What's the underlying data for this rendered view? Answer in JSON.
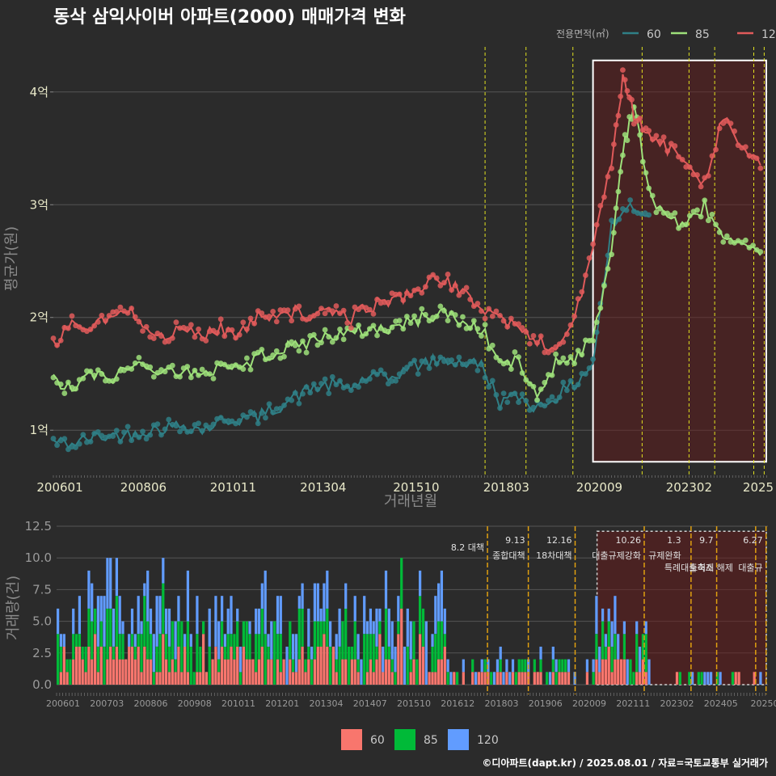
{
  "title": "동삭 삼익사이버 아파트(2000) 매매가격 변화",
  "caption": "©디아파트(dapt.kr) / 2025.08.01 / 자료=국토교통부 실거래가",
  "chart_data": [
    {
      "type": "line",
      "name": "price",
      "ylabel": "평균가(원)",
      "xlabel": "거래년월",
      "ylim": [
        0.6,
        4.4
      ],
      "yticks": [
        1,
        2,
        3,
        4
      ],
      "ytick_labels": [
        "1억",
        "2억",
        "3억",
        "4억"
      ],
      "xticks": [
        2006.0,
        2008.42,
        2010.83,
        2013.25,
        2015.75,
        2018.17,
        2020.67,
        2023.08,
        2025.0
      ],
      "xtick_labels": [
        "200601",
        "200806",
        "201011",
        "201304",
        "201510",
        "201803",
        "202009",
        "202302",
        "2025"
      ],
      "xlim": [
        2006.0,
        2025.2
      ],
      "legend_title": "전용면적(㎡)",
      "legend_position": "top-right",
      "series": [
        {
          "name": "60",
          "color": "#2f7f86",
          "x": [
            2006.0,
            2006.5,
            2007.0,
            2007.5,
            2008.0,
            2008.5,
            2009.0,
            2009.5,
            2010.0,
            2010.5,
            2011.0,
            2011.5,
            2012.0,
            2012.5,
            2013.0,
            2013.5,
            2014.0,
            2014.5,
            2015.0,
            2015.5,
            2016.0,
            2016.5,
            2017.0,
            2017.5,
            2018.0,
            2018.5,
            2019.0,
            2019.5,
            2020.0,
            2020.5,
            2021.0,
            2021.5,
            2022.0
          ],
          "y": [
            0.9,
            0.88,
            0.93,
            0.95,
            0.96,
            1.0,
            1.02,
            1.05,
            1.0,
            1.08,
            1.1,
            1.12,
            1.2,
            1.3,
            1.38,
            1.4,
            1.38,
            1.48,
            1.45,
            1.55,
            1.6,
            1.62,
            1.6,
            1.58,
            1.25,
            1.3,
            1.2,
            1.3,
            1.4,
            1.6,
            2.8,
            3.0,
            2.9
          ]
        },
        {
          "name": "85",
          "color": "#9ee07a",
          "x": [
            2006.0,
            2006.5,
            2007.0,
            2007.5,
            2008.0,
            2008.5,
            2009.0,
            2009.5,
            2010.0,
            2010.5,
            2011.0,
            2011.5,
            2012.0,
            2012.5,
            2013.0,
            2013.5,
            2014.0,
            2014.5,
            2015.0,
            2015.5,
            2016.0,
            2016.5,
            2017.0,
            2017.5,
            2018.0,
            2018.5,
            2019.0,
            2019.5,
            2020.0,
            2020.5,
            2021.0,
            2021.3,
            2021.6,
            2022.0,
            2022.5,
            2023.0,
            2023.5,
            2024.0,
            2024.5,
            2025.0
          ],
          "y": [
            1.45,
            1.35,
            1.5,
            1.45,
            1.55,
            1.6,
            1.5,
            1.55,
            1.45,
            1.6,
            1.55,
            1.65,
            1.7,
            1.75,
            1.8,
            1.85,
            1.85,
            1.9,
            1.9,
            1.95,
            2.0,
            2.05,
            1.95,
            1.9,
            1.6,
            1.6,
            1.3,
            1.6,
            1.65,
            1.8,
            2.6,
            3.5,
            3.9,
            3.1,
            2.9,
            2.8,
            3.0,
            2.7,
            2.6,
            2.55
          ]
        },
        {
          "name": "120",
          "color": "#e05a5a",
          "x": [
            2006.0,
            2006.5,
            2007.0,
            2007.5,
            2008.0,
            2008.5,
            2009.0,
            2009.5,
            2010.0,
            2010.5,
            2011.0,
            2011.5,
            2012.0,
            2012.5,
            2013.0,
            2013.5,
            2014.0,
            2014.5,
            2015.0,
            2015.5,
            2016.0,
            2016.5,
            2017.0,
            2017.5,
            2018.0,
            2018.5,
            2019.0,
            2019.5,
            2020.0,
            2020.5,
            2021.0,
            2021.3,
            2021.6,
            2022.0,
            2022.5,
            2023.0,
            2023.5,
            2024.0,
            2024.5,
            2025.0
          ],
          "y": [
            1.75,
            1.95,
            1.9,
            2.0,
            2.05,
            1.95,
            1.8,
            1.9,
            1.85,
            1.9,
            1.85,
            2.0,
            2.05,
            2.05,
            2.0,
            2.05,
            2.0,
            2.1,
            2.15,
            2.2,
            2.3,
            2.35,
            2.2,
            2.1,
            2.0,
            1.9,
            1.8,
            1.7,
            2.0,
            2.6,
            3.4,
            4.1,
            3.8,
            3.6,
            3.5,
            3.4,
            3.2,
            3.8,
            3.5,
            3.35
          ]
        }
      ],
      "policy_lines": [
        2017.6,
        2018.7,
        2019.96,
        2021.82,
        2023.08,
        2023.77,
        2024.82,
        2025.1
      ],
      "highlight_range": [
        2020.5,
        2025.2
      ]
    },
    {
      "type": "bar",
      "name": "volume",
      "ylabel": "거래량(건)",
      "ylim": [
        0,
        12.5
      ],
      "yticks": [
        0.0,
        2.5,
        5.0,
        7.5,
        10.0,
        12.5
      ],
      "ytick_labels": [
        "0.0",
        "2.5",
        "5.0",
        "7.5",
        "10.0",
        "12.5"
      ],
      "xtick_labels": [
        "200601",
        "200703",
        "200806",
        "200908",
        "201011",
        "201201",
        "201304",
        "201407",
        "201510",
        "201612",
        "201803",
        "201906",
        "202009",
        "202111",
        "202302",
        "202405",
        "20250"
      ],
      "legend_entries": [
        {
          "name": "60",
          "color": "#f8766d"
        },
        {
          "name": "85",
          "color": "#00ba38"
        },
        {
          "name": "120",
          "color": "#619cff"
        }
      ],
      "annotations": [
        {
          "date": "8.2 대책",
          "label": ""
        },
        {
          "date": "9.13",
          "label": "종합대책"
        },
        {
          "date": "12.16",
          "label": "18차대책"
        },
        {
          "date": "10.26",
          "label": "대출규제강화"
        },
        {
          "date": "1.3",
          "label": "규제완화"
        },
        {
          "date": "9.7",
          "label": "특례대출축소"
        },
        {
          "date": "",
          "label": "토허제 해제"
        },
        {
          "date": "6.27",
          "label": "대출규"
        }
      ]
    }
  ]
}
